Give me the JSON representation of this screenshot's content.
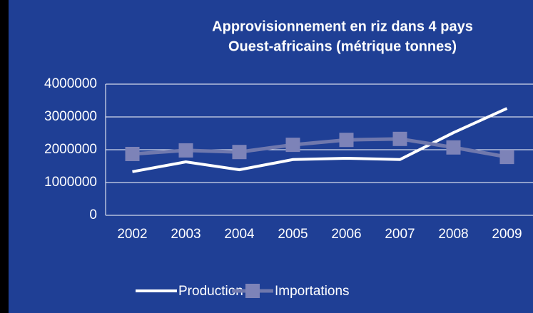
{
  "chart_data": {
    "type": "line",
    "title": [
      "Approvisionnement en riz dans 4 pays",
      "Ouest-africains (métrique tonnes)"
    ],
    "categories": [
      "2002",
      "2003",
      "2004",
      "2005",
      "2006",
      "2007",
      "2008",
      "2009"
    ],
    "series": [
      {
        "name": "Production",
        "color": "#ffffff",
        "values": [
          1330000,
          1630000,
          1390000,
          1700000,
          1740000,
          1700000,
          2520000,
          3260000
        ]
      },
      {
        "name": "Importations",
        "color": "#6f78ad",
        "values": [
          1870000,
          1980000,
          1930000,
          2150000,
          2300000,
          2330000,
          2070000,
          1780000
        ]
      }
    ],
    "ylim": [
      0,
      4000000
    ],
    "yticks": [
      0,
      1000000,
      2000000,
      3000000,
      4000000
    ],
    "grid": true,
    "legend": "bottom"
  }
}
